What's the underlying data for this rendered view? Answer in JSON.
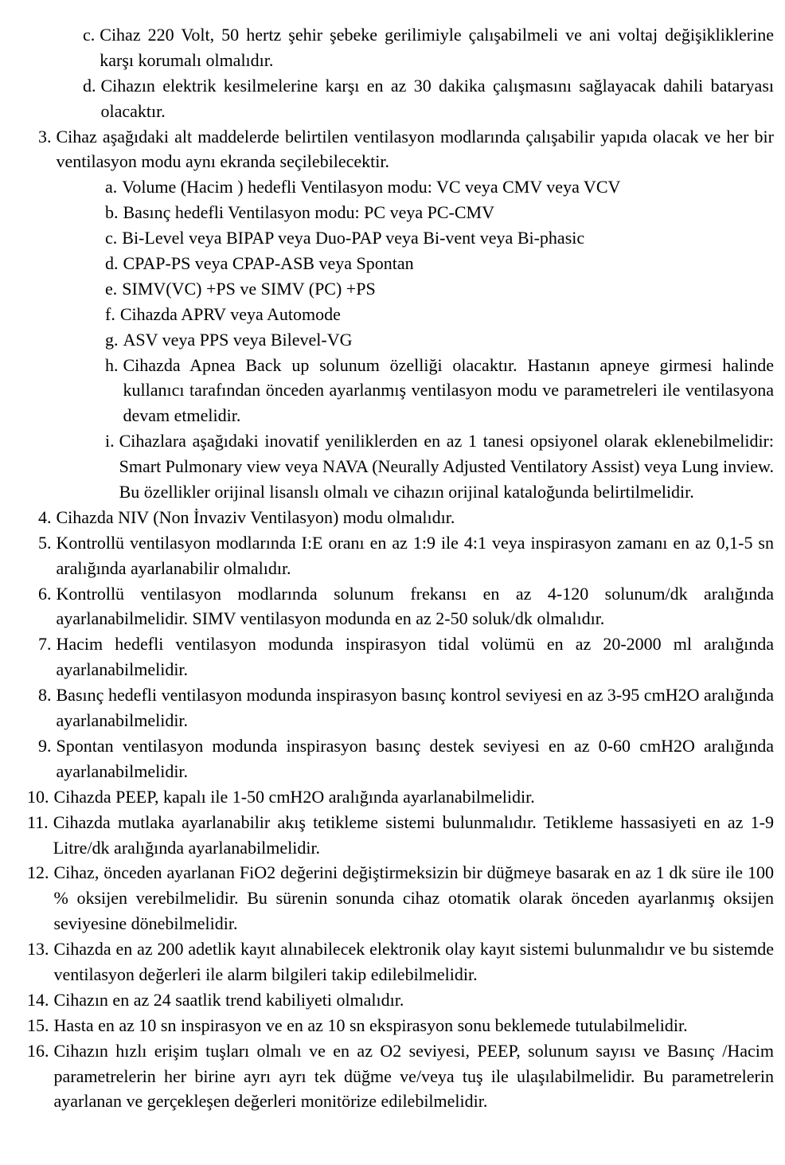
{
  "doc": {
    "font_family": "Times New Roman",
    "font_size_pt": 16,
    "text_color": "#000000",
    "background_color": "#ffffff",
    "line_height": 1.45,
    "items": {
      "c": "Cihaz 220 Volt, 50 hertz şehir şebeke gerilimiyle çalışabilmeli ve ani voltaj değişikliklerine karşı korumalı olmalıdır.",
      "d": "Cihazın elektrik kesilmelerine karşı en az 30 dakika çalışmasını sağlayacak dahili bataryası olacaktır.",
      "n3": "Cihaz aşağıdaki alt maddelerde belirtilen ventilasyon modlarında çalışabilir yapıda olacak ve her bir ventilasyon modu aynı ekranda seçilebilecektir.",
      "n3a": "Volume (Hacim ) hedefli Ventilasyon modu: VC veya CMV veya VCV",
      "n3b": "Basınç hedefli Ventilasyon modu: PC veya PC-CMV",
      "n3c": "Bi-Level veya BIPAP veya Duo-PAP veya Bi-vent veya Bi-phasic",
      "n3d": "CPAP-PS veya CPAP-ASB veya Spontan",
      "n3e": "SIMV(VC) +PS ve SIMV (PC) +PS",
      "n3f": "Cihazda APRV veya Automode",
      "n3g": "ASV veya PPS veya Bilevel-VG",
      "n3h": "Cihazda Apnea Back up solunum özelliği olacaktır. Hastanın apneye girmesi halinde kullanıcı tarafından önceden ayarlanmış ventilasyon modu ve parametreleri ile ventilasyona devam etmelidir.",
      "n3i": "Cihazlara aşağıdaki inovatif yeniliklerden en az 1 tanesi opsiyonel olarak eklenebilmelidir: Smart Pulmonary view veya NAVA (Neurally Adjusted Ventilatory Assist) veya Lung inview. Bu özellikler orijinal lisanslı olmalı ve cihazın orijinal kataloğunda belirtilmelidir.",
      "n4": "Cihazda NIV (Non İnvaziv Ventilasyon) modu olmalıdır.",
      "n5": "Kontrollü ventilasyon modlarında I:E oranı en az 1:9 ile 4:1 veya inspirasyon zamanı en az  0,1-5 sn aralığında ayarlanabilir olmalıdır.",
      "n6": "Kontrollü ventilasyon modlarında solunum frekansı en az 4-120 solunum/dk aralığında ayarlanabilmelidir. SIMV ventilasyon modunda en az 2-50 soluk/dk olmalıdır.",
      "n7": "Hacim hedefli ventilasyon modunda inspirasyon tidal volümü en az 20-2000 ml aralığında ayarlanabilmelidir.",
      "n8": "Basınç hedefli ventilasyon modunda inspirasyon basınç kontrol seviyesi en az 3-95 cmH2O aralığında ayarlanabilmelidir.",
      "n9": "Spontan ventilasyon modunda inspirasyon basınç destek seviyesi en az 0-60 cmH2O aralığında ayarlanabilmelidir.",
      "n10": "Cihazda PEEP, kapalı ile 1-50 cmH2O aralığında ayarlanabilmelidir.",
      "n11": "Cihazda mutlaka ayarlanabilir akış tetikleme sistemi bulunmalıdır. Tetikleme hassasiyeti en az 1-9 Litre/dk aralığında ayarlanabilmelidir.",
      "n12": "Cihaz, önceden ayarlanan FiO2 değerini değiştirmeksizin bir düğmeye basarak en az 1 dk süre ile 100 % oksijen verebilmelidir. Bu sürenin sonunda cihaz otomatik olarak önceden ayarlanmış oksijen seviyesine dönebilmelidir.",
      "n13": "Cihazda en az 200 adetlik kayıt alınabilecek elektronik olay kayıt sistemi bulunmalıdır ve bu sistemde ventilasyon değerleri ile alarm bilgileri takip edilebilmelidir.",
      "n14": "Cihazın en az 24 saatlik trend kabiliyeti olmalıdır.",
      "n15": "Hasta en az 10 sn inspirasyon ve en az 10 sn ekspirasyon sonu beklemede tutulabilmelidir.",
      "n16": "Cihazın hızlı erişim tuşları olmalı ve en az O2 seviyesi, PEEP, solunum sayısı ve Basınç /Hacim parametrelerin her birine ayrı ayrı tek düğme ve/veya tuş ile ulaşılabilmelidir. Bu parametrelerin ayarlanan ve gerçekleşen değerleri monitörize edilebilmelidir."
    },
    "markers": {
      "c": "c.",
      "d": "d.",
      "n3": "3.",
      "n3a": "a.",
      "n3b": "b.",
      "n3c": "c.",
      "n3d": "d.",
      "n3e": "e.",
      "n3f": "f.",
      "n3g": "g.",
      "n3h": "h.",
      "n3i": "i.",
      "n4": "4.",
      "n5": "5.",
      "n6": "6.",
      "n7": "7.",
      "n8": "8.",
      "n9": "9.",
      "n10": "10.",
      "n11": "11.",
      "n12": "12.",
      "n13": "13.",
      "n14": "14.",
      "n15": "15.",
      "n16": "16."
    }
  }
}
